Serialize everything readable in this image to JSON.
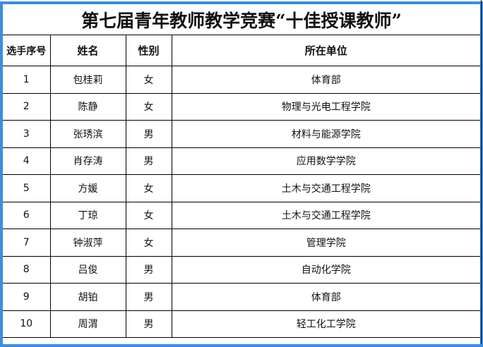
{
  "title": "第七届青年教师教学竞赛“十佳授课教师”",
  "headers": [
    "选手序号",
    "姓名",
    "性别",
    "所在单位"
  ],
  "rows": [
    [
      "1",
      "包桂莉",
      "女",
      "体育部"
    ],
    [
      "2",
      "陈静",
      "女",
      "物理与光电工程学院"
    ],
    [
      "3",
      "张琇滨",
      "男",
      "材料与能源学院"
    ],
    [
      "4",
      "肖存涛",
      "男",
      "应用数学学院"
    ],
    [
      "5",
      "方媛",
      "女",
      "土木与交通工程学院"
    ],
    [
      "6",
      "丁琼",
      "女",
      "土木与交通工程学院"
    ],
    [
      "7",
      "钟淑萍",
      "女",
      "管理学院"
    ],
    [
      "8",
      "吕俊",
      "男",
      "自动化学院"
    ],
    [
      "9",
      "胡铂",
      "男",
      "体育部"
    ],
    [
      "10",
      "周渭",
      "男",
      "轻工化工学院"
    ]
  ],
  "colors": {
    "selection_border": "#3a8ee0"
  }
}
